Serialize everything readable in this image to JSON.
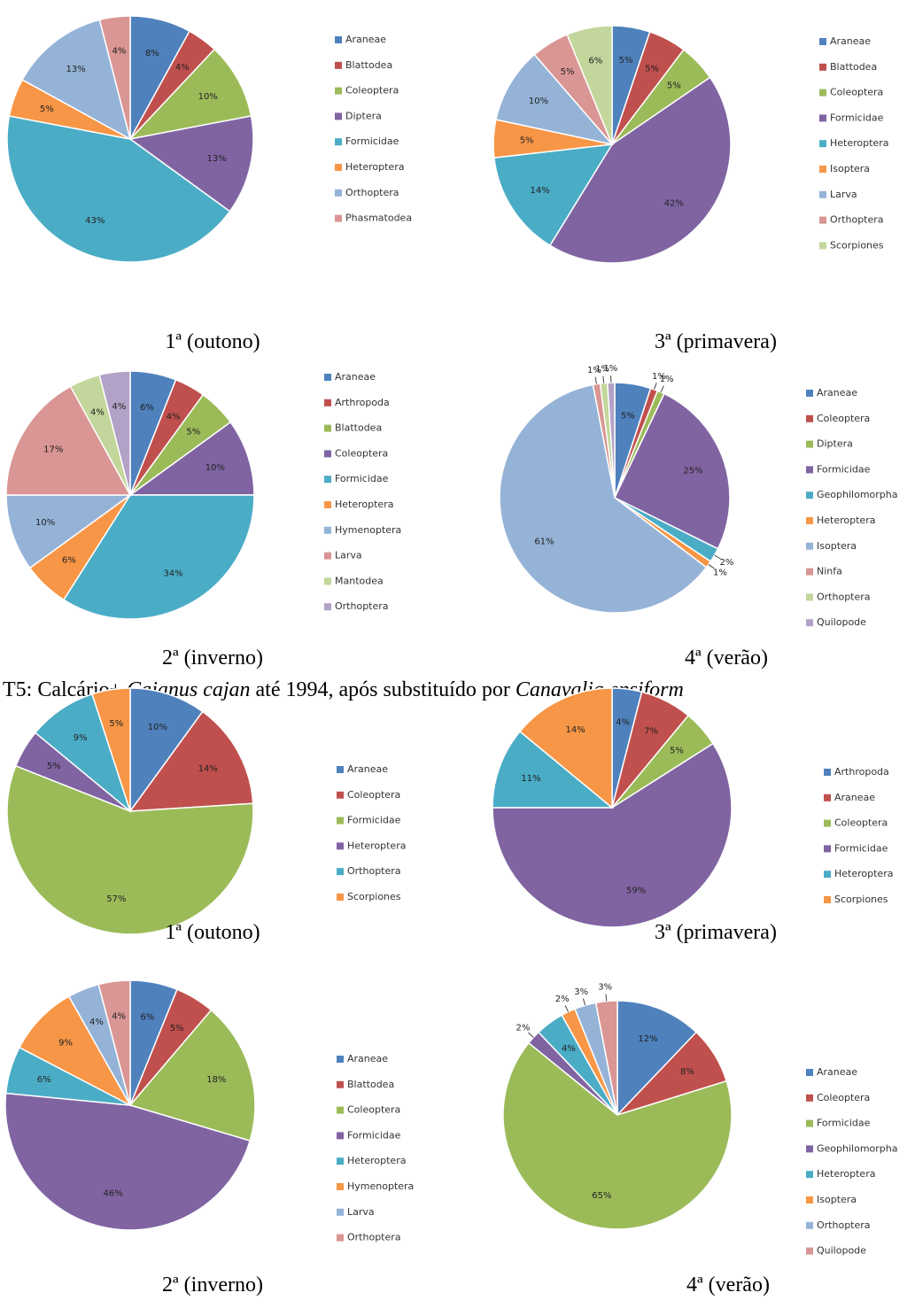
{
  "heading": {
    "parts": [
      "T5: Calcário+ ",
      "Cajanus cajan",
      " até 1994, após substituído por ",
      "Canavalia ensiform"
    ]
  },
  "chart_data": [
    {
      "type": "pie",
      "title": "1ª (outono)",
      "categories": [
        "Araneae",
        "Blattodea",
        "Coleoptera",
        "Diptera",
        "Formicidae",
        "Heteroptera",
        "Orthoptera",
        "Phasmatodea"
      ],
      "values": [
        8,
        4,
        10,
        13,
        43,
        5,
        13,
        4
      ],
      "value_labels": [
        "8%",
        "4%",
        "10%",
        "13%",
        "43%",
        "5%",
        "13%",
        "4%"
      ],
      "colors": [
        "#4f81bd",
        "#c0504d",
        "#9bbb59",
        "#8064a2",
        "#4bacc6",
        "#f79646",
        "#95b3d7",
        "#d99694"
      ]
    },
    {
      "type": "pie",
      "title": "3ª (primavera)",
      "categories": [
        "Araneae",
        "Blattodea",
        "Coleoptera",
        "Formicidae",
        "Heteroptera",
        "Isoptera",
        "Larva",
        "Orthoptera",
        "Scorpiones"
      ],
      "values": [
        5,
        5,
        5,
        42,
        14,
        5,
        10,
        5,
        6
      ],
      "value_labels": [
        "5%",
        "5%",
        "5%",
        "42%",
        "14%",
        "5%",
        "10%",
        "5%",
        "6%"
      ],
      "colors": [
        "#4f81bd",
        "#c0504d",
        "#9bbb59",
        "#8064a2",
        "#4bacc6",
        "#f79646",
        "#95b3d7",
        "#d99694",
        "#c3d69b"
      ]
    },
    {
      "type": "pie",
      "title": "2ª (inverno)",
      "categories": [
        "Araneae",
        "Arthropoda",
        "Blattodea",
        "Coleoptera",
        "Formicidae",
        "Heteroptera",
        "Hymenoptera",
        "Larva",
        "Mantodea",
        "Orthoptera"
      ],
      "values": [
        6,
        4,
        5,
        10,
        34,
        6,
        10,
        17,
        4,
        4
      ],
      "value_labels": [
        "6%",
        "4%",
        "5%",
        "10%",
        "34%",
        "6%",
        "10%",
        "17%",
        "4%",
        "4%"
      ],
      "colors": [
        "#4f81bd",
        "#c0504d",
        "#9bbb59",
        "#8064a2",
        "#4bacc6",
        "#f79646",
        "#95b3d7",
        "#d99694",
        "#c3d69b",
        "#b3a2c7"
      ]
    },
    {
      "type": "pie",
      "title": "4ª (verão)",
      "categories": [
        "Araneae",
        "Coleoptera",
        "Diptera",
        "Formicidae",
        "Geophilomorpha",
        "Heteroptera",
        "Isoptera",
        "Ninfa",
        "Orthoptera",
        "Quilopode"
      ],
      "values": [
        5,
        1,
        1,
        25,
        2,
        1,
        61,
        1,
        1,
        1
      ],
      "value_labels": [
        "5%",
        "1%",
        "1%",
        "25%",
        "2%",
        "1%",
        "61%",
        "1%",
        "1%",
        "1%"
      ],
      "colors": [
        "#4f81bd",
        "#c0504d",
        "#9bbb59",
        "#8064a2",
        "#4bacc6",
        "#f79646",
        "#95b3d7",
        "#d99694",
        "#c3d69b",
        "#b3a2c7"
      ]
    },
    {
      "type": "pie",
      "title": "1ª (outono)",
      "categories": [
        "Araneae",
        "Coleoptera",
        "Formicidae",
        "Heteroptera",
        "Orthoptera",
        "Scorpiones"
      ],
      "values": [
        10,
        14,
        57,
        5,
        9,
        5
      ],
      "value_labels": [
        "10%",
        "14%",
        "57%",
        "5%",
        "9%",
        "5%"
      ],
      "colors": [
        "#4f81bd",
        "#c0504d",
        "#9bbb59",
        "#8064a2",
        "#4bacc6",
        "#f79646"
      ]
    },
    {
      "type": "pie",
      "title": "3ª (primavera)",
      "categories": [
        "Arthropoda",
        "Araneae",
        "Coleoptera",
        "Formicidae",
        "Heteroptera",
        "Scorpiones"
      ],
      "values": [
        4,
        7,
        5,
        59,
        11,
        14
      ],
      "value_labels": [
        "4%",
        "7%",
        "5%",
        "59%",
        "11%",
        "14%"
      ],
      "colors": [
        "#4f81bd",
        "#c0504d",
        "#9bbb59",
        "#8064a2",
        "#4bacc6",
        "#f79646"
      ]
    },
    {
      "type": "pie",
      "title": "2ª (inverno)",
      "categories": [
        "Araneae",
        "Blattodea",
        "Coleoptera",
        "Formicidae",
        "Heteroptera",
        "Hymenoptera",
        "Larva",
        "Orthoptera"
      ],
      "values": [
        6,
        5,
        18,
        46,
        6,
        9,
        4,
        4
      ],
      "value_labels": [
        "6%",
        "5%",
        "18%",
        "46%",
        "6%",
        "9%",
        "4%",
        "4%"
      ],
      "colors": [
        "#4f81bd",
        "#c0504d",
        "#9bbb59",
        "#8064a2",
        "#4bacc6",
        "#f79646",
        "#95b3d7",
        "#d99694"
      ]
    },
    {
      "type": "pie",
      "title": "4ª (verão)",
      "categories": [
        "Araneae",
        "Coleoptera",
        "Formicidae",
        "Geophilomorpha",
        "Heteroptera",
        "Isoptera",
        "Orthoptera",
        "Quilopode"
      ],
      "values": [
        12,
        8,
        65,
        2,
        4,
        2,
        3,
        3
      ],
      "value_labels": [
        "12%",
        "8%",
        "65%",
        "2%",
        "4%",
        "2%",
        "3%",
        "3%"
      ],
      "colors": [
        "#4f81bd",
        "#c0504d",
        "#9bbb59",
        "#8064a2",
        "#4bacc6",
        "#f79646",
        "#95b3d7",
        "#d99694"
      ]
    }
  ]
}
